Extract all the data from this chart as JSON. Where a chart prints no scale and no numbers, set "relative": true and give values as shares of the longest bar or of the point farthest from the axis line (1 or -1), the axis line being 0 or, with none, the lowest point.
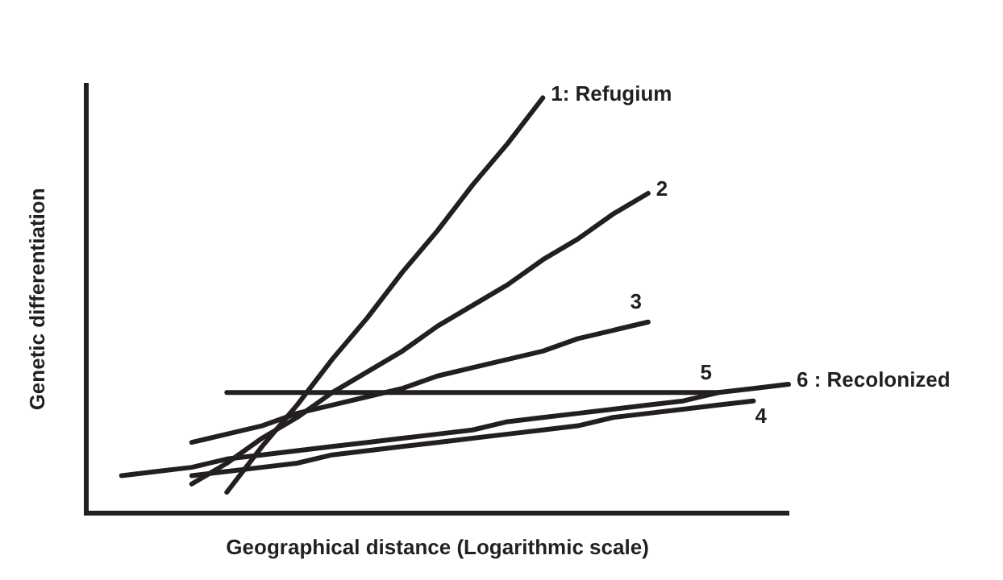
{
  "chart_data": {
    "type": "line",
    "xlabel": "Geographical distance (Logarithmic scale)",
    "ylabel": "Genetic differentiation",
    "relative": true,
    "tick_labels": false,
    "grid": false,
    "legend": false,
    "marker": "none",
    "line_style": "solid",
    "categories": [
      null,
      null,
      null,
      null,
      null,
      null,
      null,
      null,
      null,
      null,
      null,
      null,
      null,
      null,
      null,
      null,
      null,
      null,
      null,
      null,
      null
    ],
    "series": [
      {
        "name": "1: Refugium",
        "color": "#231f20",
        "values": [
          null,
          null,
          null,
          null,
          0.05,
          0.16,
          0.26,
          0.37,
          0.47,
          0.58,
          0.68,
          0.79,
          0.89,
          1.0,
          null,
          null,
          null,
          null,
          null,
          null,
          null
        ]
      },
      {
        "name": "2",
        "color": "#231f20",
        "values": [
          null,
          null,
          null,
          0.07,
          0.12,
          0.18,
          0.23,
          0.29,
          0.34,
          0.39,
          0.45,
          0.5,
          0.55,
          0.61,
          0.66,
          0.72,
          0.77,
          null,
          null,
          null,
          null
        ]
      },
      {
        "name": "3",
        "color": "#231f20",
        "values": [
          null,
          null,
          null,
          0.17,
          0.19,
          0.21,
          0.24,
          0.26,
          0.28,
          0.3,
          0.33,
          0.35,
          0.37,
          0.39,
          0.42,
          0.44,
          0.46,
          null,
          null,
          null,
          null
        ]
      },
      {
        "name": "4",
        "color": "#231f20",
        "values": [
          null,
          null,
          null,
          0.09,
          0.1,
          0.11,
          0.12,
          0.14,
          0.15,
          0.16,
          0.17,
          0.18,
          0.19,
          0.2,
          0.21,
          0.23,
          0.24,
          0.25,
          0.26,
          0.27,
          null
        ]
      },
      {
        "name": "5",
        "color": "#231f20",
        "values": [
          null,
          null,
          null,
          null,
          0.29,
          0.29,
          0.29,
          0.29,
          0.29,
          0.29,
          0.29,
          0.29,
          0.29,
          0.29,
          0.29,
          0.29,
          0.29,
          0.29,
          0.29,
          null,
          null
        ]
      },
      {
        "name": "6 : Recolonized",
        "color": "#231f20",
        "values": [
          null,
          0.09,
          0.1,
          0.11,
          0.13,
          0.14,
          0.15,
          0.16,
          0.17,
          0.18,
          0.19,
          0.2,
          0.22,
          0.23,
          0.24,
          0.25,
          0.26,
          0.27,
          0.29,
          0.3,
          0.31
        ]
      }
    ]
  }
}
